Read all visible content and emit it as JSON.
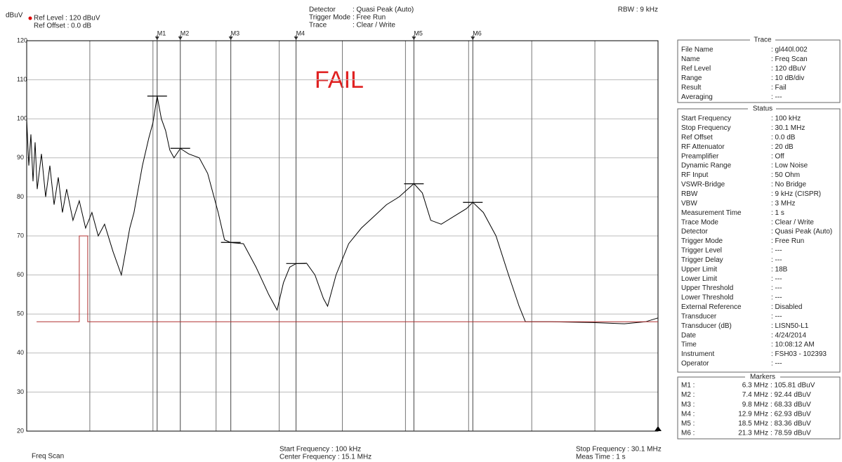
{
  "chart_data": {
    "type": "line",
    "y_unit": "dBuV",
    "header": {
      "ref_level": "Ref Level : 120  dBuV",
      "ref_offset": "Ref Offset :  0.0 dB",
      "detector_rows": [
        [
          "Detector",
          ": Quasi Peak (Auto)"
        ],
        [
          "Trigger Mode",
          ": Free Run"
        ],
        [
          "Trace",
          ": Clear / Write"
        ]
      ],
      "rbw": "RBW : 9 kHz"
    },
    "annotation": "FAIL",
    "footer": {
      "left": "Freq Scan",
      "center": [
        "Start Frequency  :  100  kHz",
        "Center Frequency : 15.1 MHz"
      ],
      "right": [
        "Stop Frequency : 30.1 MHz",
        "Meas Time       :  1  s"
      ]
    },
    "xlim": [
      0.1,
      30.1
    ],
    "xticks": [
      0.1,
      3.1,
      6.1,
      9.1,
      12.1,
      15.1,
      18.1,
      21.1,
      24.1,
      27.1,
      30.1
    ],
    "ylim": [
      20,
      120
    ],
    "yticks": [
      20,
      30,
      40,
      50,
      60,
      70,
      80,
      90,
      100,
      110,
      120
    ],
    "grid": true,
    "series": [
      {
        "name": "Trace",
        "color": "#000000",
        "x": [
          0.1,
          0.2,
          0.3,
          0.4,
          0.5,
          0.6,
          0.8,
          1.0,
          1.2,
          1.4,
          1.6,
          1.8,
          2.0,
          2.3,
          2.6,
          2.9,
          3.2,
          3.5,
          3.8,
          4.2,
          4.6,
          5.0,
          5.2,
          5.6,
          5.9,
          6.1,
          6.3,
          6.5,
          6.7,
          6.9,
          7.1,
          7.4,
          7.8,
          8.3,
          8.7,
          9.2,
          9.5,
          9.8,
          10.4,
          11.0,
          11.6,
          12.0,
          12.3,
          12.6,
          12.9,
          13.4,
          13.8,
          14.2,
          14.4,
          14.8,
          15.4,
          16.0,
          16.6,
          17.2,
          17.8,
          18.5,
          18.9,
          19.3,
          19.8,
          20.4,
          21.0,
          21.3,
          21.8,
          22.4,
          23.0,
          23.5,
          23.8,
          25.0,
          27.0,
          28.5,
          29.5,
          30.1
        ],
        "values": [
          100,
          88,
          96,
          84,
          94,
          82,
          91,
          80,
          88,
          78,
          85,
          76,
          82,
          74,
          79,
          72,
          76,
          70,
          73,
          66,
          60,
          72,
          76,
          88,
          95,
          99,
          105.8,
          100,
          97,
          92,
          90,
          92.4,
          91,
          90,
          86,
          76,
          69,
          68.3,
          68,
          62,
          55,
          51,
          58,
          62,
          62.9,
          63,
          60,
          54,
          52,
          60,
          68,
          72,
          75,
          78,
          80,
          83.4,
          81,
          74,
          73,
          75,
          77,
          78.6,
          76,
          70,
          60,
          52,
          48,
          48,
          47.8,
          47.5,
          48,
          49
        ]
      },
      {
        "name": "Limit",
        "color": "#b03030",
        "x": [
          0.57,
          2.6,
          2.6,
          3.0,
          3.0,
          30.1
        ],
        "values": [
          48,
          48,
          70,
          70,
          48,
          48
        ]
      }
    ],
    "markers": [
      {
        "name": "M1",
        "table_label": "M1 :",
        "freq": 6.3,
        "freq_label": "6.3 MHz",
        "level": 105.81,
        "level_label": ": 105.81 dBuV"
      },
      {
        "name": "M2",
        "table_label": "M2 :",
        "freq": 7.4,
        "freq_label": "7.4 MHz",
        "level": 92.44,
        "level_label": ":  92.44 dBuV"
      },
      {
        "name": "M3",
        "table_label": "M3 :",
        "freq": 9.8,
        "freq_label": "9.8 MHz",
        "level": 68.33,
        "level_label": ":  68.33 dBuV"
      },
      {
        "name": "M4",
        "table_label": "M4 :",
        "freq": 12.9,
        "freq_label": "12.9 MHz",
        "level": 62.93,
        "level_label": ":  62.93 dBuV"
      },
      {
        "name": "M5",
        "table_label": "M5 :",
        "freq": 18.5,
        "freq_label": "18.5 MHz",
        "level": 83.36,
        "level_label": ":  83.36 dBuV"
      },
      {
        "name": "M6",
        "table_label": "M6 :",
        "freq": 21.3,
        "freq_label": "21.3 MHz",
        "level": 78.59,
        "level_label": ":  78.59 dBuV"
      }
    ]
  },
  "panel": {
    "trace_title": "Trace",
    "trace_rows": [
      [
        "File Name",
        ": gl440l.002"
      ],
      [
        "Name",
        ": Freq Scan"
      ],
      [
        "Ref Level",
        ": 120    dBuV"
      ],
      [
        "Range",
        ": 10 dB/div"
      ],
      [
        "Result",
        ": Fail"
      ],
      [
        "Averaging",
        ": ---"
      ]
    ],
    "status_title": "Status",
    "status_rows": [
      [
        "Start Frequency",
        ": 100    kHz"
      ],
      [
        "Stop Frequency",
        ":  30.1  MHz"
      ],
      [
        "Ref Offset",
        ":    0.0  dB"
      ],
      [
        "RF Attenuator",
        ":   20    dB"
      ],
      [
        "Preamplifier",
        ": Off"
      ],
      [
        "Dynamic Range",
        ": Low Noise"
      ],
      [
        "RF Input",
        ":   50    Ohm"
      ],
      [
        "VSWR-Bridge",
        ": No Bridge"
      ],
      [
        "RBW",
        ":    9    kHz (CISPR)"
      ],
      [
        "VBW",
        ":    3    MHz"
      ],
      [
        "Measurement Time",
        ":    1    s"
      ],
      [
        "Trace Mode",
        ": Clear / Write"
      ],
      [
        "Detector",
        ": Quasi Peak (Auto)"
      ],
      [
        "Trigger Mode",
        ": Free Run"
      ],
      [
        "Trigger Level",
        ": ---"
      ],
      [
        "Trigger Delay",
        ": ---"
      ],
      [
        "Upper Limit",
        ": 18B"
      ],
      [
        "Lower Limit",
        ": ---"
      ],
      [
        "Upper Threshold",
        ": ---"
      ],
      [
        "Lower Threshold",
        ": ---"
      ],
      [
        "External Reference",
        ": Disabled"
      ],
      [
        "Transducer",
        ": ---"
      ],
      [
        "Transducer (dB)",
        ": LISN50-L1"
      ],
      [
        "Date",
        ":  4/24/2014"
      ],
      [
        "Time",
        ":  10:08:12 AM"
      ],
      [
        "Instrument",
        ": FSH03 - 102393"
      ],
      [
        "Operator",
        ": ---"
      ]
    ],
    "markers_title": "Markers"
  }
}
